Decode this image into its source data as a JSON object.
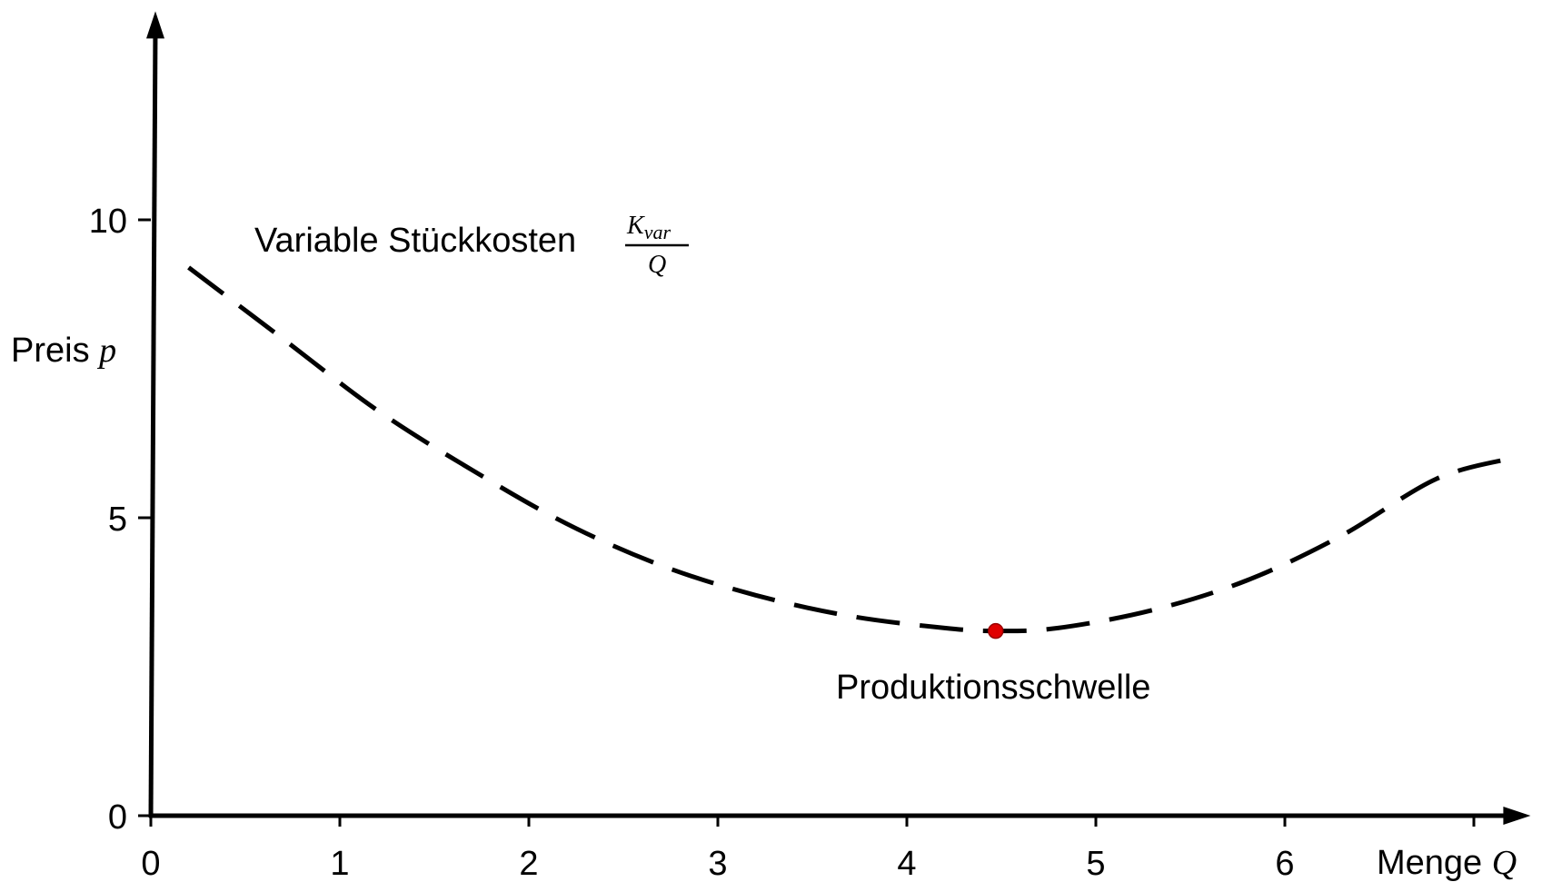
{
  "chart_data": {
    "type": "line",
    "title": "",
    "xlabel": "Menge",
    "xlabel_symbol": "Q",
    "ylabel": "Preis",
    "ylabel_symbol": "p",
    "xlim": [
      0,
      7.3
    ],
    "ylim": [
      0,
      13.5
    ],
    "x_ticks": [
      "0",
      "1",
      "2",
      "3",
      "4",
      "5",
      "6",
      "7"
    ],
    "x_tick_labels_shown": [
      "0",
      "1",
      "2",
      "3",
      "4",
      "5",
      "6"
    ],
    "y_ticks": [
      "0",
      "5",
      "10"
    ],
    "grid": false,
    "legend": "none",
    "series": [
      {
        "name": "Variable Stückkosten",
        "name_fraction_numerator": "K",
        "name_fraction_subscript": "var",
        "name_fraction_denominator": "Q",
        "line_style": "dashed",
        "color": "#000000",
        "x": [
          0.2,
          0.7,
          1.2,
          1.7,
          2.2,
          2.7,
          3.2,
          3.7,
          4.2,
          4.47,
          4.8,
          5.3,
          5.8,
          6.3,
          6.8,
          7.2
        ],
        "y": [
          9.2,
          8.0,
          6.8,
          5.8,
          4.9,
          4.2,
          3.7,
          3.35,
          3.15,
          3.1,
          3.15,
          3.45,
          3.95,
          4.7,
          5.65,
          6.0
        ]
      }
    ],
    "annotations": [
      {
        "label": "Produktionsschwelle",
        "x": 4.47,
        "y": 3.1,
        "marker_color": "#e00000"
      }
    ]
  }
}
